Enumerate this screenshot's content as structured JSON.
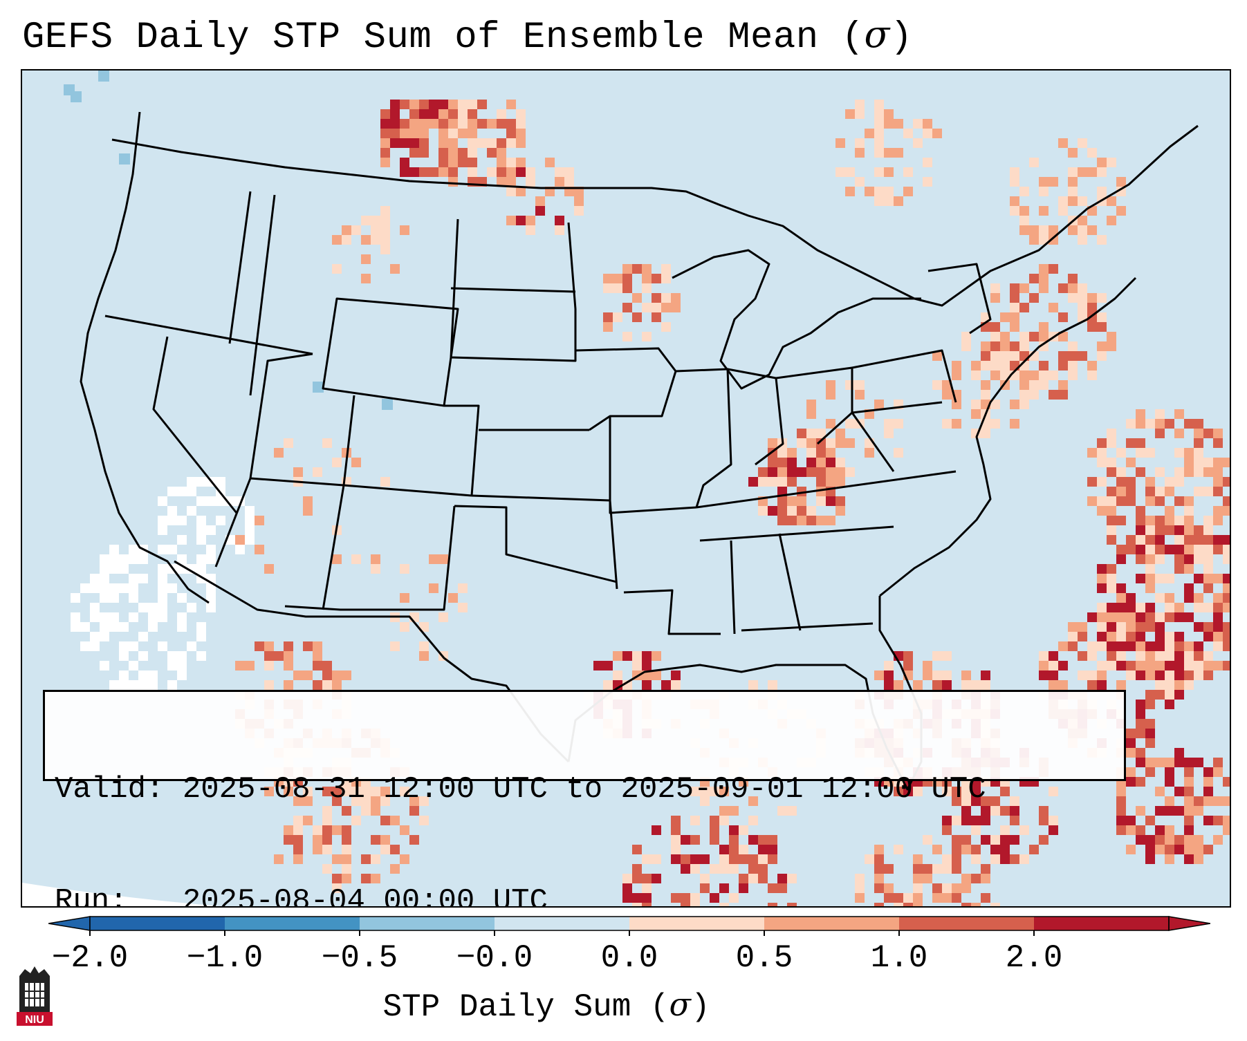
{
  "title": {
    "text": "GEFS Daily STP Sum of Ensemble Mean (",
    "symbol": "σ",
    "close": ")"
  },
  "info": {
    "valid_label": "Valid:",
    "valid_value": "2025-08-31 12:00 UTC to 2025-09-01 12:00 UTC",
    "run_label": "Run:",
    "run_value": "2025-08-04 00:00 UTC"
  },
  "colorbar": {
    "label": "STP Daily Sum (",
    "label_symbol": "σ",
    "label_close": ")",
    "ticks": [
      "−2.0",
      "−1.0",
      "−0.5",
      "−0.0",
      "0.0",
      "0.5",
      "1.0",
      "2.0"
    ],
    "colors": [
      "#2166ac",
      "#4393c3",
      "#92c5de",
      "#d1e5f0",
      "#fddbc7",
      "#f4a582",
      "#d6604d",
      "#b2182b"
    ]
  },
  "map": {
    "domain": "Continental United States",
    "background_color": "#d1e5f0",
    "high_anomaly_regions": [
      "Southeast Montana",
      "Eastern Montana",
      "Southern Illinois",
      "Western Kentucky",
      "Gulf of Mexico",
      "Florida",
      "Western Atlantic",
      "Bahamas",
      "Gulf of California"
    ]
  },
  "logo": {
    "text": "NIU"
  }
}
